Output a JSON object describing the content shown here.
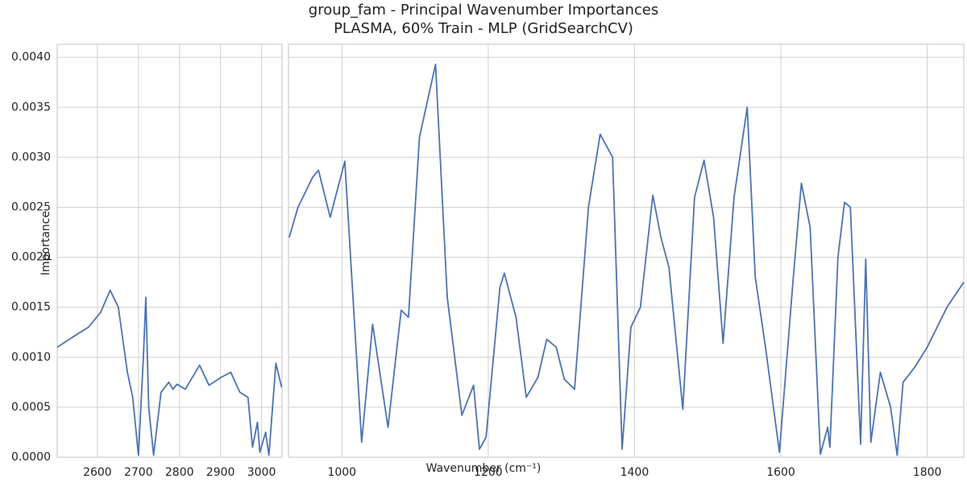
{
  "chart_data": [
    {
      "type": "line",
      "title": "group_fam - Principal Wavenumber Importances",
      "subtitle": "PLASMA, 60% Train - MLP (GridSearchCV)",
      "y_label": "Importance",
      "color": "#4c72b0",
      "grid": true,
      "xlim": [
        2502,
        3050
      ],
      "ylim": [
        0,
        0.00413
      ],
      "xticks": [
        2600,
        2700,
        2800,
        2900,
        3000
      ],
      "yticks": [
        {
          "value": 0,
          "label": "0.0000"
        },
        {
          "value": 0.0005,
          "label": "0.0005"
        },
        {
          "value": 0.001,
          "label": "0.0010"
        },
        {
          "value": 0.0015,
          "label": "0.0015"
        },
        {
          "value": 0.002,
          "label": "0.0020"
        },
        {
          "value": 0.0025,
          "label": "0.0025"
        },
        {
          "value": 0.003,
          "label": "0.0030"
        },
        {
          "value": 0.0035,
          "label": "0.0035"
        },
        {
          "value": 0.004,
          "label": "0.0040"
        }
      ],
      "x": [
        2502,
        2539,
        2578,
        2608,
        2631,
        2651,
        2673,
        2686,
        2700,
        2712,
        2718,
        2725,
        2737,
        2755,
        2774,
        2784,
        2794,
        2814,
        2849,
        2872,
        2902,
        2925,
        2947,
        2967,
        2978,
        2990,
        2996,
        3010,
        3018,
        3035,
        3049
      ],
      "values": [
        0.0011,
        0.0012,
        0.0013,
        0.00145,
        0.00167,
        0.0015,
        0.00085,
        0.0006,
        2e-05,
        0.001,
        0.0016,
        0.0005,
        2e-05,
        0.00065,
        0.00075,
        0.00068,
        0.00073,
        0.00068,
        0.00092,
        0.00072,
        0.0008,
        0.00085,
        0.00065,
        0.0006,
        0.0001,
        0.00035,
        5e-05,
        0.00025,
        2e-05,
        0.00094,
        0.0007
      ]
    },
    {
      "type": "line",
      "x_label": "Wavenumber (cm⁻¹)",
      "color": "#4c72b0",
      "grid": true,
      "xlim": [
        927,
        1850
      ],
      "ylim": [
        0,
        0.00413
      ],
      "xticks": [
        1000,
        1200,
        1400,
        1600,
        1800
      ],
      "x": [
        928,
        940,
        950,
        960,
        968,
        984,
        1004,
        1027,
        1042,
        1063,
        1081,
        1091,
        1106,
        1128,
        1144,
        1164,
        1180,
        1188,
        1197,
        1216,
        1222,
        1238,
        1252,
        1268,
        1280,
        1293,
        1304,
        1318,
        1337,
        1353,
        1370,
        1383,
        1395,
        1408,
        1425,
        1436,
        1447,
        1466,
        1482,
        1495,
        1508,
        1521,
        1536,
        1554,
        1565,
        1579,
        1598,
        1617,
        1628,
        1640,
        1654,
        1664,
        1667,
        1678,
        1687,
        1695,
        1709,
        1716,
        1723,
        1736,
        1750,
        1759,
        1767,
        1783,
        1800,
        1827,
        1850
      ],
      "values": [
        0.0022,
        0.0025,
        0.00265,
        0.0028,
        0.00287,
        0.0024,
        0.00296,
        0.00015,
        0.00133,
        0.0003,
        0.00147,
        0.0014,
        0.0032,
        0.00393,
        0.0016,
        0.00042,
        0.00072,
        8e-05,
        0.0002,
        0.0017,
        0.00184,
        0.0014,
        0.0006,
        0.0008,
        0.00118,
        0.0011,
        0.00078,
        0.00068,
        0.0025,
        0.00323,
        0.003,
        8e-05,
        0.0013,
        0.0015,
        0.00262,
        0.0022,
        0.0019,
        0.00048,
        0.0026,
        0.00297,
        0.0024,
        0.00114,
        0.0026,
        0.0035,
        0.0018,
        0.0011,
        5e-05,
        0.0018,
        0.00274,
        0.0023,
        3e-05,
        0.0003,
        0.0001,
        0.002,
        0.00255,
        0.0025,
        0.00013,
        0.00198,
        0.00015,
        0.00085,
        0.0005,
        2e-05,
        0.00075,
        0.0009,
        0.0011,
        0.0015,
        0.00175
      ]
    }
  ]
}
